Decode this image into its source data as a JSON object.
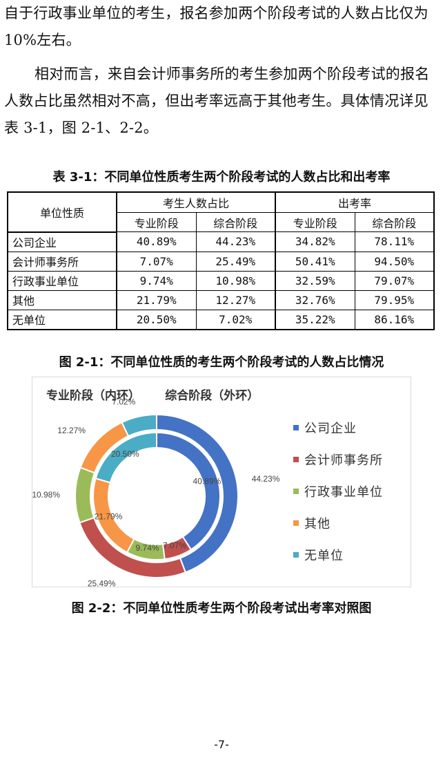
{
  "body_text": {
    "paragraph1": "自于行政事业单位的考生，报名参加两个阶段考试的人数占比仅为 10%左右。",
    "paragraph2": "相对而言，来自会计师事务所的考生参加两个阶段考试的报名人数占比虽然相对不高，但出考率远高于其他考生。具体情况详见表 3-1，图 2-1、2-2。"
  },
  "table": {
    "caption": "表 3-1：不同单位性质考生两个阶段考试的人数占比和出考率",
    "header_unit": "单位性质",
    "header_share": "考生人数占比",
    "header_rate": "出考率",
    "sub_headers": [
      "专业阶段",
      "综合阶段",
      "专业阶段",
      "综合阶段"
    ],
    "rows": [
      {
        "name": "公司企业",
        "values": [
          "40.89%",
          "44.23%",
          "34.82%",
          "78.11%"
        ]
      },
      {
        "name": "会计师事务所",
        "values": [
          "7.07%",
          "25.49%",
          "50.41%",
          "94.50%"
        ]
      },
      {
        "name": "行政事业单位",
        "values": [
          "9.74%",
          "10.98%",
          "32.59%",
          "79.07%"
        ]
      },
      {
        "name": "其他",
        "values": [
          "21.79%",
          "12.27%",
          "32.76%",
          "79.95%"
        ]
      },
      {
        "name": "无单位",
        "values": [
          "20.50%",
          "7.02%",
          "35.22%",
          "86.16%"
        ]
      }
    ]
  },
  "figure1_caption": "图 2-1：不同单位性质的考生两个阶段考试的人数占比情况",
  "figure2_caption": "图 2-2：不同单位性质考生两个阶段考试出考率对照图",
  "page_number": "-7-",
  "chart_data": {
    "type": "pie",
    "variant": "double-donut",
    "title_inner": "专业阶段（内环）",
    "title_outer": "综合阶段（外环）",
    "categories": [
      "公司企业",
      "会计师事务所",
      "行政事业单位",
      "其他",
      "无单位"
    ],
    "colors": [
      "#4472c4",
      "#c0504d",
      "#9bbb59",
      "#f79646",
      "#4bacc6"
    ],
    "series": [
      {
        "name": "专业阶段（内环）",
        "values": [
          40.89,
          7.07,
          9.74,
          21.79,
          20.5
        ],
        "labels": [
          "40.89%",
          "7.07%",
          "9.74%",
          "21.79%",
          "20.50%"
        ]
      },
      {
        "name": "综合阶段（外环）",
        "values": [
          44.23,
          25.49,
          10.98,
          12.27,
          7.02
        ],
        "labels": [
          "44.23%",
          "25.49%",
          "10.98%",
          "12.27%",
          "7.02%"
        ]
      }
    ],
    "legend_position": "right"
  }
}
